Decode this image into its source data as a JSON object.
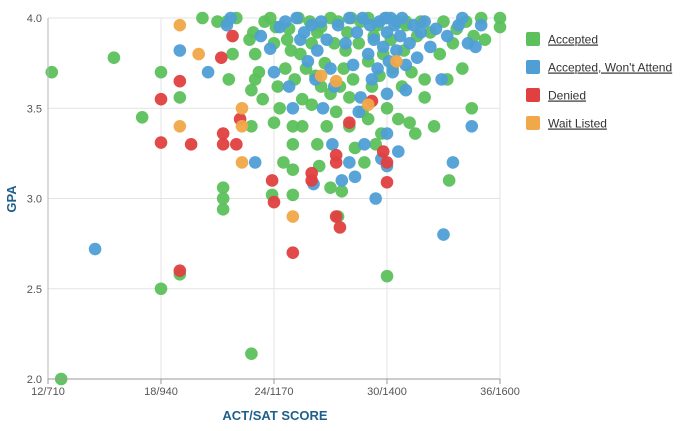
{
  "chart_data": {
    "type": "scatter",
    "xlabel": "ACT/SAT SCORE",
    "ylabel": "GPA",
    "xlim": [
      12,
      36
    ],
    "ylim": [
      2.0,
      4.0
    ],
    "x_ticks": [
      {
        "value": 12,
        "label": "12/710"
      },
      {
        "value": 18,
        "label": "18/940"
      },
      {
        "value": 24,
        "label": "24/1170"
      },
      {
        "value": 30,
        "label": "30/1400"
      },
      {
        "value": 36,
        "label": "36/1600"
      }
    ],
    "y_ticks": [
      {
        "value": 2.0,
        "label": "2.0"
      },
      {
        "value": 2.5,
        "label": "2.5"
      },
      {
        "value": 3.0,
        "label": "3.0"
      },
      {
        "value": 3.5,
        "label": "3.5"
      },
      {
        "value": 4.0,
        "label": "4.0"
      }
    ],
    "grid": true,
    "legend_position": "right",
    "series": [
      {
        "name": "Accepted",
        "color": "#5cc15c",
        "points": [
          [
            12.2,
            3.7
          ],
          [
            12.7,
            2.0
          ],
          [
            15.5,
            3.78
          ],
          [
            17.0,
            3.45
          ],
          [
            18.0,
            3.7
          ],
          [
            18.0,
            2.5
          ],
          [
            19.0,
            3.56
          ],
          [
            19.0,
            2.58
          ],
          [
            20.2,
            4.0
          ],
          [
            21.0,
            3.98
          ],
          [
            21.3,
            3.06
          ],
          [
            21.3,
            3.0
          ],
          [
            21.3,
            2.94
          ],
          [
            21.5,
            3.98
          ],
          [
            21.6,
            3.66
          ],
          [
            21.8,
            3.8
          ],
          [
            22.0,
            4.0
          ],
          [
            22.7,
            3.88
          ],
          [
            22.8,
            3.6
          ],
          [
            22.8,
            3.4
          ],
          [
            22.8,
            2.14
          ],
          [
            22.9,
            3.92
          ],
          [
            23.0,
            3.8
          ],
          [
            23.0,
            3.66
          ],
          [
            23.2,
            3.7
          ],
          [
            23.4,
            3.55
          ],
          [
            23.5,
            3.98
          ],
          [
            23.8,
            4.0
          ],
          [
            23.9,
            3.02
          ],
          [
            24.0,
            3.42
          ],
          [
            24.0,
            3.86
          ],
          [
            24.1,
            3.95
          ],
          [
            24.2,
            3.62
          ],
          [
            24.3,
            3.5
          ],
          [
            24.5,
            3.2
          ],
          [
            24.6,
            3.72
          ],
          [
            24.7,
            3.88
          ],
          [
            24.8,
            3.94
          ],
          [
            25.0,
            3.3
          ],
          [
            25.0,
            3.4
          ],
          [
            25.0,
            3.02
          ],
          [
            25.0,
            3.16
          ],
          [
            25.1,
            3.66
          ],
          [
            25.3,
            4.0
          ],
          [
            25.4,
            3.8
          ],
          [
            25.5,
            3.55
          ],
          [
            25.5,
            3.4
          ],
          [
            25.7,
            3.72
          ],
          [
            25.9,
            3.98
          ],
          [
            26.0,
            3.86
          ],
          [
            26.0,
            3.52
          ],
          [
            26.2,
            3.68
          ],
          [
            26.3,
            3.92
          ],
          [
            26.3,
            3.3
          ],
          [
            26.5,
            3.95
          ],
          [
            26.5,
            3.62
          ],
          [
            26.7,
            3.75
          ],
          [
            26.8,
            3.4
          ],
          [
            27.0,
            4.0
          ],
          [
            27.0,
            3.58
          ],
          [
            27.0,
            3.06
          ],
          [
            27.2,
            3.86
          ],
          [
            27.3,
            3.48
          ],
          [
            27.4,
            3.98
          ],
          [
            27.4,
            2.9
          ],
          [
            27.5,
            3.62
          ],
          [
            27.7,
            3.72
          ],
          [
            27.8,
            3.82
          ],
          [
            27.9,
            3.92
          ],
          [
            28.0,
            3.56
          ],
          [
            28.0,
            3.4
          ],
          [
            28.1,
            4.0
          ],
          [
            28.2,
            3.66
          ],
          [
            28.3,
            3.28
          ],
          [
            28.5,
            3.86
          ],
          [
            28.6,
            3.98
          ],
          [
            28.7,
            3.48
          ],
          [
            28.8,
            3.2
          ],
          [
            29.0,
            4.0
          ],
          [
            29.0,
            3.76
          ],
          [
            29.0,
            3.44
          ],
          [
            29.2,
            3.62
          ],
          [
            29.3,
            3.9
          ],
          [
            29.4,
            3.3
          ],
          [
            29.5,
            3.96
          ],
          [
            29.6,
            3.68
          ],
          [
            29.8,
            3.8
          ],
          [
            30.0,
            4.0
          ],
          [
            30.0,
            3.5
          ],
          [
            30.0,
            2.57
          ],
          [
            30.2,
            3.88
          ],
          [
            30.3,
            3.72
          ],
          [
            30.5,
            3.98
          ],
          [
            30.6,
            3.44
          ],
          [
            30.8,
            3.62
          ],
          [
            30.9,
            3.82
          ],
          [
            31.0,
            3.96
          ],
          [
            31.2,
            3.42
          ],
          [
            31.3,
            3.7
          ],
          [
            31.5,
            3.36
          ],
          [
            31.6,
            3.9
          ],
          [
            31.8,
            3.98
          ],
          [
            32.0,
            3.66
          ],
          [
            32.0,
            3.56
          ],
          [
            32.3,
            3.92
          ],
          [
            32.5,
            3.4
          ],
          [
            32.8,
            3.8
          ],
          [
            33.0,
            3.98
          ],
          [
            33.2,
            3.66
          ],
          [
            33.3,
            3.1
          ],
          [
            33.5,
            3.86
          ],
          [
            33.7,
            3.94
          ],
          [
            34.0,
            3.72
          ],
          [
            34.2,
            3.98
          ],
          [
            34.5,
            3.5
          ],
          [
            34.6,
            3.9
          ],
          [
            35.0,
            4.0
          ],
          [
            35.2,
            3.88
          ],
          [
            36.0,
            3.95
          ],
          [
            36.0,
            4.0
          ],
          [
            31.0,
            3.98
          ],
          [
            29.7,
            3.36
          ],
          [
            27.6,
            3.04
          ],
          [
            26.4,
            3.18
          ],
          [
            24.9,
            3.82
          ]
        ]
      },
      {
        "name": "Accepted, Won't Attend",
        "color": "#4f9fd6",
        "points": [
          [
            14.5,
            2.72
          ],
          [
            19.0,
            3.82
          ],
          [
            20.5,
            3.7
          ],
          [
            21.5,
            3.96
          ],
          [
            21.7,
            4.0
          ],
          [
            23.0,
            3.2
          ],
          [
            23.3,
            3.9
          ],
          [
            23.8,
            3.83
          ],
          [
            24.0,
            3.7
          ],
          [
            24.3,
            3.95
          ],
          [
            24.6,
            3.98
          ],
          [
            24.8,
            3.62
          ],
          [
            25.0,
            3.5
          ],
          [
            25.2,
            4.0
          ],
          [
            25.4,
            3.88
          ],
          [
            25.6,
            3.92
          ],
          [
            25.8,
            3.76
          ],
          [
            26.0,
            3.96
          ],
          [
            26.1,
            3.08
          ],
          [
            26.2,
            3.66
          ],
          [
            26.3,
            3.82
          ],
          [
            26.5,
            3.98
          ],
          [
            26.6,
            3.5
          ],
          [
            26.8,
            3.88
          ],
          [
            27.0,
            3.72
          ],
          [
            27.2,
            3.62
          ],
          [
            27.4,
            3.96
          ],
          [
            27.6,
            3.1
          ],
          [
            27.8,
            3.86
          ],
          [
            28.0,
            3.2
          ],
          [
            28.0,
            4.0
          ],
          [
            28.2,
            3.74
          ],
          [
            28.3,
            3.12
          ],
          [
            28.4,
            3.92
          ],
          [
            28.6,
            3.56
          ],
          [
            28.7,
            4.0
          ],
          [
            28.8,
            3.3
          ],
          [
            29.0,
            3.8
          ],
          [
            29.1,
            3.96
          ],
          [
            29.2,
            3.66
          ],
          [
            29.3,
            3.88
          ],
          [
            29.4,
            3.0
          ],
          [
            29.5,
            3.72
          ],
          [
            29.6,
            3.98
          ],
          [
            29.7,
            3.22
          ],
          [
            29.8,
            3.84
          ],
          [
            29.9,
            4.0
          ],
          [
            30.0,
            3.36
          ],
          [
            30.0,
            3.58
          ],
          [
            30.0,
            3.92
          ],
          [
            30.1,
            3.76
          ],
          [
            30.2,
            4.0
          ],
          [
            30.3,
            3.7
          ],
          [
            30.4,
            3.96
          ],
          [
            30.5,
            3.82
          ],
          [
            30.6,
            3.26
          ],
          [
            30.7,
            3.9
          ],
          [
            30.8,
            4.0
          ],
          [
            31.0,
            3.74
          ],
          [
            31.2,
            3.86
          ],
          [
            31.4,
            3.96
          ],
          [
            31.6,
            3.78
          ],
          [
            31.8,
            3.92
          ],
          [
            32.0,
            3.98
          ],
          [
            32.3,
            3.84
          ],
          [
            32.6,
            3.94
          ],
          [
            32.9,
            3.66
          ],
          [
            33.0,
            2.8
          ],
          [
            33.2,
            3.9
          ],
          [
            33.5,
            3.2
          ],
          [
            33.8,
            3.96
          ],
          [
            34.0,
            4.0
          ],
          [
            34.3,
            3.86
          ],
          [
            34.5,
            3.4
          ],
          [
            34.7,
            3.84
          ],
          [
            35.0,
            3.96
          ],
          [
            31.0,
            3.6
          ],
          [
            30.0,
            3.18
          ],
          [
            28.5,
            3.48
          ],
          [
            27.1,
            3.3
          ]
        ]
      },
      {
        "name": "Denied",
        "color": "#e04040",
        "points": [
          [
            18.0,
            3.55
          ],
          [
            18.0,
            3.31
          ],
          [
            19.0,
            3.65
          ],
          [
            19.0,
            2.6
          ],
          [
            19.6,
            3.3
          ],
          [
            21.2,
            3.78
          ],
          [
            21.3,
            3.36
          ],
          [
            21.3,
            3.3
          ],
          [
            21.8,
            3.9
          ],
          [
            22.0,
            3.3
          ],
          [
            22.2,
            3.44
          ],
          [
            23.9,
            3.1
          ],
          [
            24.0,
            2.98
          ],
          [
            25.0,
            2.7
          ],
          [
            26.0,
            3.14
          ],
          [
            26.0,
            3.1
          ],
          [
            27.3,
            3.24
          ],
          [
            27.3,
            3.2
          ],
          [
            27.5,
            2.84
          ],
          [
            27.3,
            2.9
          ],
          [
            28.0,
            3.42
          ],
          [
            29.2,
            3.54
          ],
          [
            30.0,
            3.2
          ],
          [
            30.0,
            3.09
          ],
          [
            29.8,
            3.26
          ]
        ]
      },
      {
        "name": "Wait Listed",
        "color": "#f0a848",
        "points": [
          [
            19.0,
            3.96
          ],
          [
            19.0,
            3.4
          ],
          [
            20.0,
            3.8
          ],
          [
            22.3,
            3.5
          ],
          [
            22.3,
            3.4
          ],
          [
            22.3,
            3.2
          ],
          [
            25.0,
            2.9
          ],
          [
            26.5,
            3.68
          ],
          [
            27.3,
            3.65
          ],
          [
            29.0,
            3.52
          ],
          [
            30.5,
            3.76
          ]
        ]
      }
    ]
  }
}
